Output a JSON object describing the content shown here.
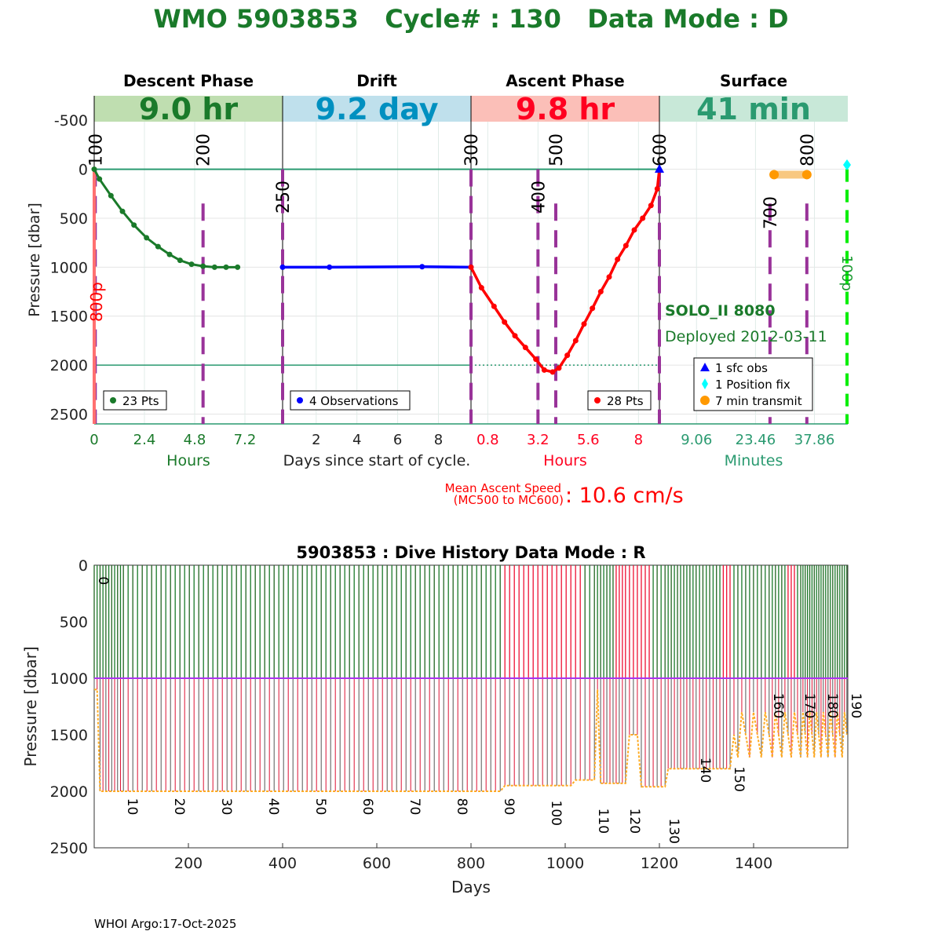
{
  "title": "WMO 5903853   Cycle# : 130   Data Mode : D",
  "colors": {
    "descent": "#1a7a2a",
    "drift": "#0000ff",
    "ascent": "#ff0000",
    "surface": "#2a9a70",
    "purple": "#993399",
    "orange": "#ff9900"
  },
  "chart_data": [
    {
      "type": "line",
      "ylabel": "Pressure [dbar]",
      "yticks": [
        -500,
        0,
        500,
        1000,
        1500,
        2000,
        2500
      ],
      "ylim": [
        2600,
        -750
      ],
      "phases": [
        {
          "name": "Descent Phase",
          "duration": "9.0 hr",
          "band_color": "#bfdeb0",
          "text_color": "#1a7a2a",
          "xlabel": "Hours",
          "xticks": [
            "0",
            "2.4",
            "4.8",
            "7.2"
          ],
          "xtick_values": [
            0,
            2.4,
            4.8,
            7.2
          ],
          "xmax": 9.0,
          "legend": "23 Pts",
          "points": {
            "x": [
              0,
              0.25,
              0.8,
              1.35,
              1.9,
              2.5,
              3.05,
              3.6,
              4.1,
              4.65,
              5.2,
              5.75,
              6.3,
              6.85
            ],
            "y": [
              0,
              100,
              270,
              430,
              570,
              700,
              790,
              870,
              930,
              970,
              990,
              1000,
              1000,
              1000
            ]
          }
        },
        {
          "name": "Drift",
          "duration": "9.2 day",
          "band_color": "#bfe0ec",
          "text_color": "#0090c0",
          "xlabel": "Days since start of cycle.",
          "xticks": [
            "2",
            "4",
            "6",
            "8"
          ],
          "xtick_values": [
            2,
            4,
            6,
            8
          ],
          "xmin": 0.35,
          "xmax": 9.6,
          "legend": "4 Observations",
          "points": {
            "x": [
              0.35,
              2.65,
              7.2,
              9.6
            ],
            "y": [
              1000,
              1000,
              995,
              1000
            ]
          }
        },
        {
          "name": "Ascent Phase",
          "duration": "9.8 hr",
          "band_color": "#fbbfb8",
          "text_color": "#ff0020",
          "xlabel": "Hours",
          "xticks": [
            "0.8",
            "3.2",
            "5.6",
            "8"
          ],
          "xtick_values": [
            0.8,
            3.2,
            5.6,
            8
          ],
          "xmax": 9.0,
          "legend": "28 Pts",
          "points": {
            "x": [
              0,
              0.5,
              1.1,
              1.6,
              2.1,
              2.6,
              3.1,
              3.5,
              3.9,
              4.2,
              4.6,
              5.0,
              5.4,
              5.8,
              6.2,
              6.6,
              7.0,
              7.4,
              7.8,
              8.2,
              8.6,
              8.9
            ],
            "y": [
              1000,
              1210,
              1400,
              1560,
              1700,
              1820,
              1940,
              2050,
              2070,
              2030,
              1900,
              1750,
              1580,
              1420,
              1250,
              1100,
              920,
              780,
              620,
              500,
              370,
              200
            ]
          }
        },
        {
          "name": "Surface",
          "duration": "41 min",
          "band_color": "#c8e8d8",
          "text_color": "#2a9a70",
          "xlabel": "Minutes",
          "xticks": [
            "9.06",
            "23.46",
            "37.86"
          ],
          "xtick_values": [
            9.06,
            23.46,
            37.86
          ],
          "xmax": 46
        }
      ],
      "marker_labels": [
        {
          "label": "100",
          "panel": 0,
          "x": 0.05
        },
        {
          "label": "200",
          "panel": 0,
          "x": 5.2
        },
        {
          "label": "250",
          "panel": 1,
          "x": 0.35
        },
        {
          "label": "300",
          "panel": 2,
          "x": 0
        },
        {
          "label": "400",
          "panel": 2,
          "x": 3.2
        },
        {
          "label": "500",
          "panel": 2,
          "x": 4.05
        },
        {
          "label": "600",
          "panel": 3,
          "x": 0
        },
        {
          "label": "700",
          "panel": 3,
          "x": 27
        },
        {
          "label": "800",
          "panel": 3,
          "x": 36
        }
      ],
      "pump_label": "800p",
      "surface_label": "100p",
      "float_model": "SOLO_II 8080",
      "deployed": "Deployed 2012-03-11",
      "surface_legend": [
        "1 sfc obs",
        "1 Position fix",
        "7 min transmit"
      ],
      "transmit_minutes": [
        28,
        36
      ],
      "ascent_speed_label": "Mean Ascent Speed",
      "ascent_speed_sub": "(MC500 to MC600)",
      "ascent_speed_value": ":  10.6 cm/s"
    },
    {
      "type": "line",
      "title": "5903853 : Dive History      Data Mode : R",
      "xlabel": "Days",
      "ylabel": "Pressure [dbar]",
      "xlim": [
        0,
        1600
      ],
      "ylim": [
        2500,
        0
      ],
      "xticks": [
        200,
        400,
        600,
        800,
        1000,
        1200,
        1400
      ],
      "yticks": [
        0,
        500,
        1000,
        1500,
        2000,
        2500
      ],
      "park_pressure": 1000,
      "cycle_labels": [
        {
          "c": "0",
          "day": 0,
          "p": 100
        },
        {
          "c": "10",
          "day": 62,
          "p": 2060
        },
        {
          "c": "20",
          "day": 162,
          "p": 2060
        },
        {
          "c": "30",
          "day": 262,
          "p": 2060
        },
        {
          "c": "40",
          "day": 362,
          "p": 2060
        },
        {
          "c": "50",
          "day": 462,
          "p": 2060
        },
        {
          "c": "60",
          "day": 562,
          "p": 2060
        },
        {
          "c": "70",
          "day": 662,
          "p": 2060
        },
        {
          "c": "80",
          "day": 762,
          "p": 2060
        },
        {
          "c": "90",
          "day": 862,
          "p": 2060
        },
        {
          "c": "100",
          "day": 962,
          "p": 2080
        },
        {
          "c": "110",
          "day": 1062,
          "p": 2150
        },
        {
          "c": "120",
          "day": 1128,
          "p": 2150
        },
        {
          "c": "130",
          "day": 1212,
          "p": 2240
        },
        {
          "c": "140",
          "day": 1278,
          "p": 1700
        },
        {
          "c": "150",
          "day": 1350,
          "p": 1780
        },
        {
          "c": "160",
          "day": 1433,
          "p": 1130
        },
        {
          "c": "170",
          "day": 1500,
          "p": 1130
        },
        {
          "c": "180",
          "day": 1548,
          "p": 1130
        },
        {
          "c": "190",
          "day": 1598,
          "p": 1130
        }
      ],
      "profile_depth_segments": [
        {
          "from": 0,
          "to": 1,
          "p": 1100
        },
        {
          "from": 2,
          "to": 90,
          "p": 2000
        },
        {
          "from": 91,
          "to": 105,
          "p": 1950
        },
        {
          "from": 106,
          "to": 110,
          "p": 1900
        },
        {
          "from": 111,
          "to": 111,
          "p": 1100
        },
        {
          "from": 112,
          "to": 120,
          "p": 1930
        },
        {
          "from": 121,
          "to": 123,
          "p": 1500
        },
        {
          "from": 124,
          "to": 130,
          "p": 1960
        },
        {
          "from": 131,
          "to": 150,
          "p": 1800
        },
        {
          "from": 151,
          "to": 190,
          "p": 1300
        }
      ],
      "red_cycle_ranges": [
        [
          91,
          107
        ],
        [
          117,
          126
        ],
        [
          148,
          150
        ],
        [
          166,
          168
        ]
      ]
    }
  ],
  "footer": "WHOI Argo:17-Oct-2025"
}
